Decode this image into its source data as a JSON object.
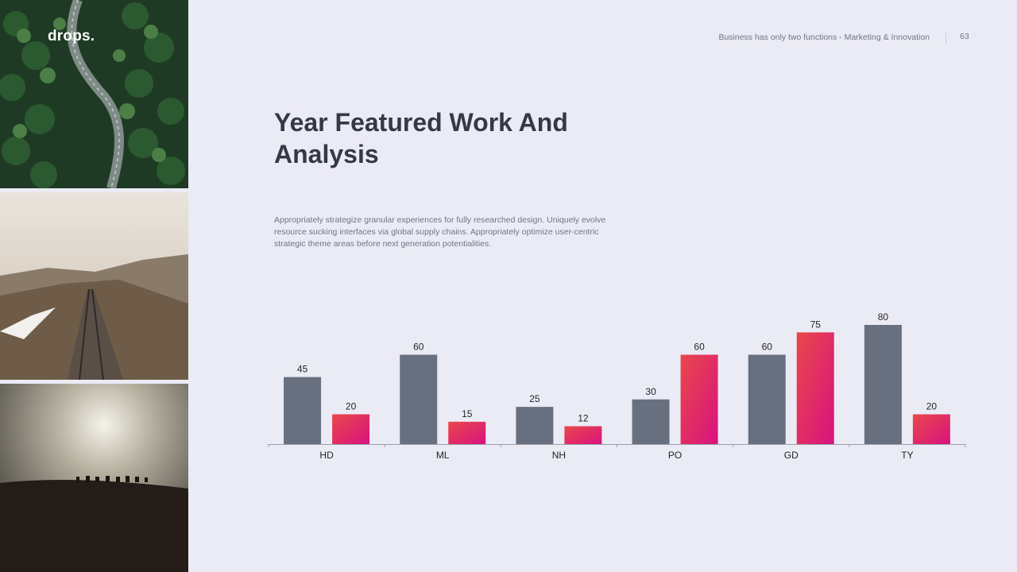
{
  "brand": {
    "name": "drops."
  },
  "header": {
    "tagline": "Business has only two functions - Marketing & Innovation",
    "page_number": "63"
  },
  "slide": {
    "title": "Year Featured Work And Analysis",
    "body": "Appropriately strategize granular experiences for fully researched design. Uniquely evolve resource sucking interfaces via global supply chains. Appropriately optimize user-centric strategic theme areas before next generation potentialities."
  },
  "colors": {
    "series_gray": "#687080",
    "series_red_top": "#e8484a",
    "series_red_bottom": "#d9127f",
    "axis": "#9aa0ad",
    "label": "#1f2128"
  },
  "chart_data": {
    "type": "bar",
    "categories": [
      "HD",
      "ML",
      "NH",
      "PO",
      "GD",
      "TY"
    ],
    "series": [
      {
        "values": [
          45,
          60,
          25,
          30,
          60,
          80
        ]
      },
      {
        "values": [
          20,
          15,
          12,
          60,
          75,
          20
        ]
      }
    ],
    "ylim": [
      0,
      80
    ],
    "data_labels": true,
    "grid": false,
    "legend": "none"
  }
}
